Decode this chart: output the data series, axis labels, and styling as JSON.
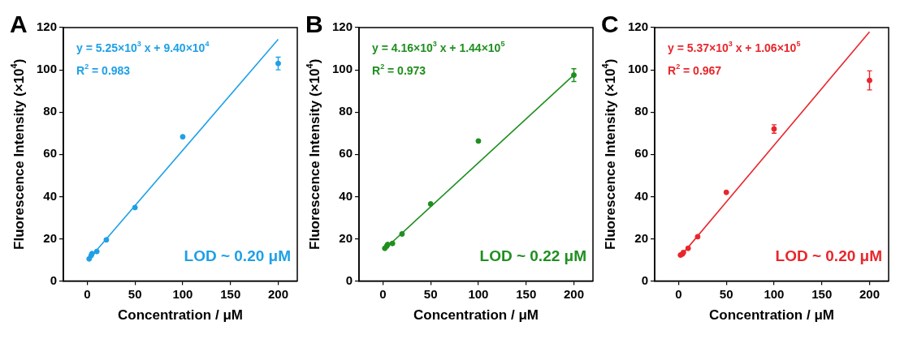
{
  "chart_data": [
    {
      "type": "scatter",
      "title": "A",
      "xlabel": "Concentration / μM",
      "ylabel": "Fluorescence Intensity (×10$^{4}$)",
      "xlim": [
        -25,
        220
      ],
      "ylim": [
        0,
        120
      ],
      "xticks": [
        0,
        50,
        100,
        150,
        200
      ],
      "yticks": [
        0,
        20,
        40,
        60,
        80,
        100,
        120
      ],
      "grid": false,
      "legend": false,
      "annotations": [
        "y = 5.25×10$^{3}$ x + 9.40×10$^{4}$",
        "R$^{2}$ = 0.983",
        "LOD ~ 0.20 μM"
      ],
      "series": [
        {
          "type": "scatter",
          "marker": "circle",
          "color": "#1ea0e6",
          "x": [
            2,
            4,
            5,
            10,
            20,
            50,
            100,
            200
          ],
          "values": [
            10.5,
            12,
            13,
            14,
            19.5,
            34.8,
            68.3,
            103
          ],
          "errors": [
            null,
            null,
            null,
            null,
            null,
            null,
            null,
            3
          ]
        },
        {
          "type": "line",
          "color": "#1ea0e6",
          "x": [
            2,
            200
          ],
          "values": [
            10.5,
            114.4
          ]
        }
      ]
    },
    {
      "type": "scatter",
      "title": "B",
      "xlabel": "Concentration / μM",
      "ylabel": "Fluorescence Intensity (×10$^{4}$)",
      "xlim": [
        -25,
        220
      ],
      "ylim": [
        0,
        120
      ],
      "xticks": [
        0,
        50,
        100,
        150,
        200
      ],
      "yticks": [
        0,
        20,
        40,
        60,
        80,
        100,
        120
      ],
      "grid": false,
      "legend": false,
      "annotations": [
        "y = 4.16×10$^{3}$ x + 1.44×10$^{5}$",
        "R$^{2}$ = 0.973",
        "LOD ~ 0.22 μM"
      ],
      "series": [
        {
          "type": "scatter",
          "marker": "circle",
          "color": "#1f8f1f",
          "x": [
            2,
            4,
            5,
            10,
            20,
            50,
            100,
            200
          ],
          "values": [
            15.5,
            16.5,
            17.3,
            17.8,
            22.3,
            36.5,
            66.3,
            97.5
          ],
          "errors": [
            null,
            null,
            null,
            null,
            null,
            null,
            null,
            3
          ]
        },
        {
          "type": "line",
          "color": "#1f8f1f",
          "x": [
            2,
            200
          ],
          "values": [
            15.2,
            97.6
          ]
        }
      ]
    },
    {
      "type": "scatter",
      "title": "C",
      "xlabel": "Concentration / μM",
      "ylabel": "Fluorescence Intensity (×10$^{4}$)",
      "xlim": [
        -25,
        220
      ],
      "ylim": [
        0,
        120
      ],
      "xticks": [
        0,
        50,
        100,
        150,
        200
      ],
      "yticks": [
        0,
        20,
        40,
        60,
        80,
        100,
        120
      ],
      "grid": false,
      "legend": false,
      "annotations": [
        "y = 5.37×10$^{3}$ x + 1.06×10$^{5}$",
        "R$^{2}$ = 0.967",
        "LOD ~ 0.20 μM"
      ],
      "series": [
        {
          "type": "scatter",
          "marker": "circle",
          "color": "#e8262b",
          "x": [
            2,
            4,
            5,
            10,
            20,
            50,
            100,
            200
          ],
          "values": [
            12.3,
            12.8,
            13.5,
            15.5,
            21,
            42,
            72,
            95
          ],
          "errors": [
            null,
            null,
            null,
            null,
            null,
            null,
            2,
            4.5
          ]
        },
        {
          "type": "line",
          "color": "#e8262b",
          "x": [
            2,
            200
          ],
          "values": [
            11.7,
            118
          ]
        }
      ]
    }
  ]
}
